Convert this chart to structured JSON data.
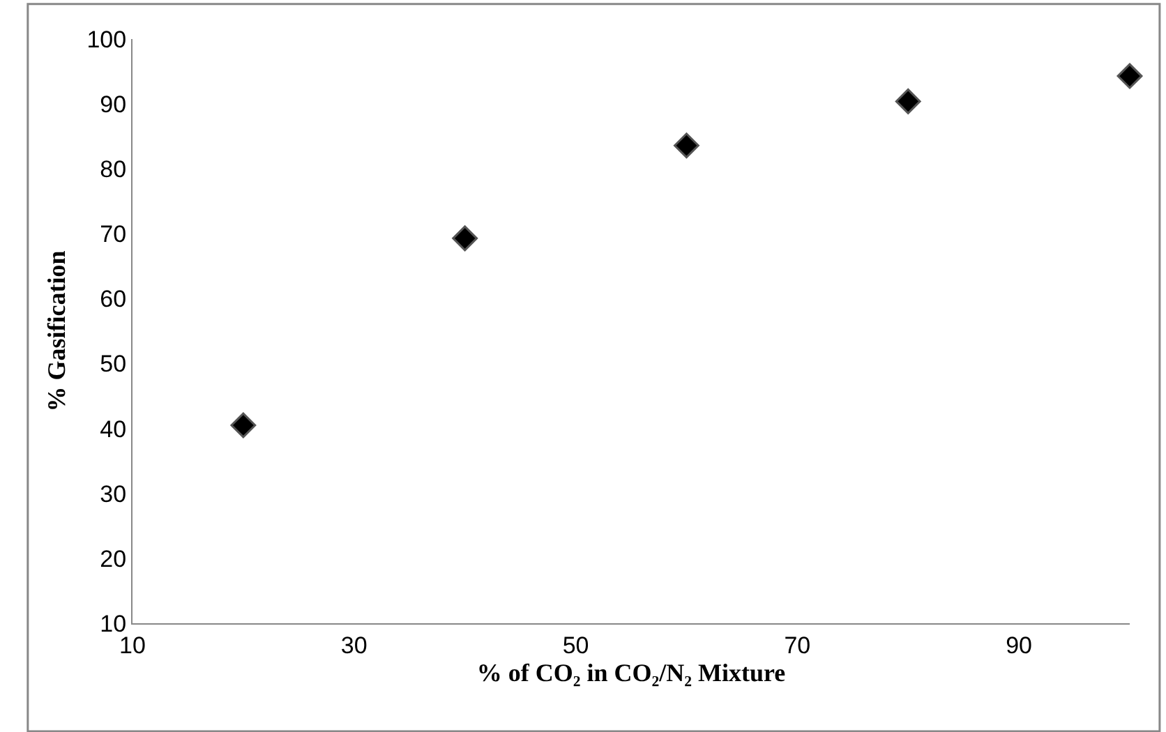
{
  "chart_data": {
    "type": "scatter",
    "xlabel": "% of CO₂ in CO₂/N₂ Mixture",
    "ylabel": "% Gasification",
    "x": [
      20,
      40,
      60,
      80,
      100
    ],
    "series": [
      {
        "color": "#000000",
        "values": [
          40.5,
          69.3,
          83.6,
          90.4,
          94.3
        ]
      }
    ],
    "xlim": [
      10,
      100
    ],
    "xticks": [
      10,
      30,
      50,
      70,
      90
    ],
    "ylim": [
      10,
      100
    ],
    "yticks": [
      10,
      20,
      30,
      40,
      50,
      60,
      70,
      80,
      90,
      100
    ],
    "marker": "diamond",
    "grid": false
  }
}
